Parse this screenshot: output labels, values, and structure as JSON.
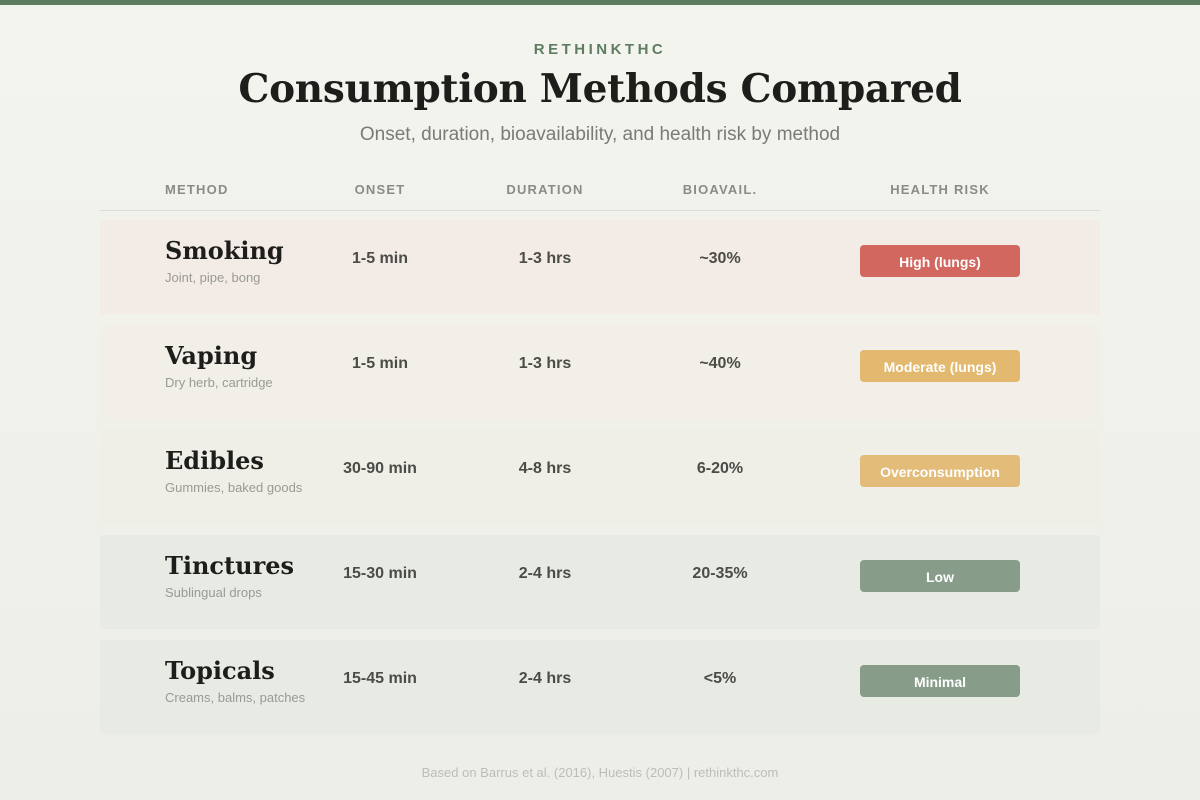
{
  "brand": "RETHINKTHC",
  "title": "Consumption Methods Compared",
  "subtitle": "Onset, duration, bioavailability, and health risk by method",
  "columns": {
    "method": "METHOD",
    "onset": "ONSET",
    "duration": "DURATION",
    "bioavailability": "BIOAVAIL.",
    "risk": "HEALTH RISK"
  },
  "rows": [
    {
      "name": "Smoking",
      "sub": "Joint, pipe, bong",
      "onset": "1-5 min",
      "duration": "1-3 hrs",
      "bioavailability": "~30%",
      "risk": "High (lungs)",
      "risk_color": "#d2675f",
      "row_bg": "#f2ebe6"
    },
    {
      "name": "Vaping",
      "sub": "Dry herb, cartridge",
      "onset": "1-5 min",
      "duration": "1-3 hrs",
      "bioavailability": "~40%",
      "risk": "Moderate (lungs)",
      "risk_color": "#e2b96e",
      "row_bg": "#f1efe7"
    },
    {
      "name": "Edibles",
      "sub": "Gummies, baked goods",
      "onset": "30-90 min",
      "duration": "4-8 hrs",
      "bioavailability": "6-20%",
      "risk": "Overconsumption",
      "risk_color": "#e3bc7a",
      "row_bg": "#efeee7"
    },
    {
      "name": "Tinctures",
      "sub": "Sublingual drops",
      "onset": "15-30 min",
      "duration": "2-4 hrs",
      "bioavailability": "20-35%",
      "risk": "Low",
      "risk_color": "#879c89",
      "row_bg": "#e8ebe4"
    },
    {
      "name": "Topicals",
      "sub": "Creams, balms, patches",
      "onset": "15-45 min",
      "duration": "2-4 hrs",
      "bioavailability": "<5%",
      "risk": "Minimal",
      "risk_color": "#879c89",
      "row_bg": "#e8ebe4"
    }
  ],
  "footer": "Based on Barrus et al. (2016), Huestis (2007) | rethinkthc.com",
  "colors": {
    "accent": "#5e7c62",
    "title": "#1d1d1b"
  }
}
